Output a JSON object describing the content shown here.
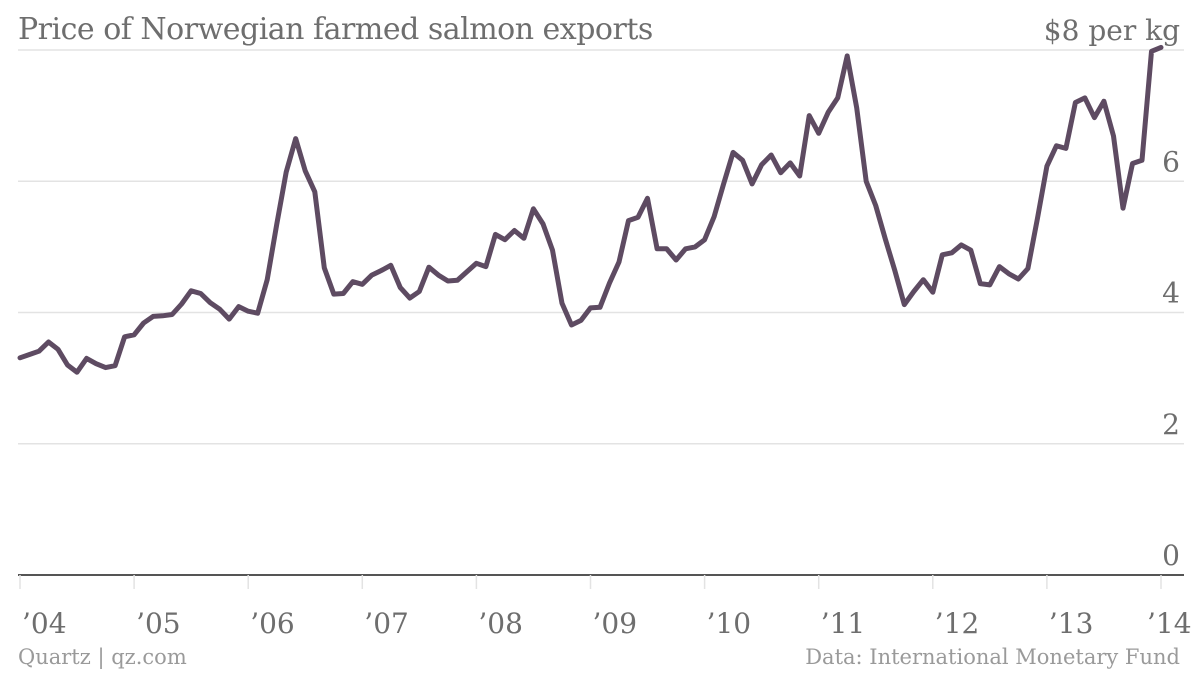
{
  "header": {
    "title": "Price of Norwegian farmed salmon exports"
  },
  "footer": {
    "credit": "Quartz | qz.com",
    "source": "Data: International Monetary Fund"
  },
  "colors": {
    "line": "#5e4b62",
    "grid": "#e3e3e3",
    "axis": "#555555",
    "text": "#6e6e6e"
  },
  "chart_data": {
    "type": "line",
    "title": "Price of Norwegian farmed salmon exports",
    "ylabel": "",
    "xlabel": "",
    "ylim": [
      0,
      8
    ],
    "yticks": [
      0,
      2,
      4,
      6,
      8
    ],
    "ytick_labels": [
      "0",
      "2",
      "4",
      "6",
      "$8 per kg"
    ],
    "x_start": 2004.0,
    "x_step": 0.0833333,
    "xticks": [
      2004,
      2005,
      2006,
      2007,
      2008,
      2009,
      2010,
      2011,
      2012,
      2013,
      2014
    ],
    "xtick_labels": [
      "’04",
      "’05",
      "’06",
      "’07",
      "’08",
      "’09",
      "’10",
      "’11",
      "’12",
      "’13",
      "’14"
    ],
    "grid": true,
    "legend": "none",
    "series": [
      {
        "values": [
          3.31,
          3.36,
          3.41,
          3.55,
          3.44,
          3.2,
          3.09,
          3.3,
          3.22,
          3.16,
          3.19,
          3.63,
          3.66,
          3.84,
          3.94,
          3.95,
          3.97,
          4.13,
          4.33,
          4.29,
          4.15,
          4.05,
          3.9,
          4.09,
          4.02,
          3.99,
          4.5,
          5.34,
          6.14,
          6.65,
          6.16,
          5.84,
          4.68,
          4.28,
          4.29,
          4.47,
          4.43,
          4.57,
          4.64,
          4.72,
          4.38,
          4.22,
          4.32,
          4.69,
          4.57,
          4.48,
          4.49,
          4.62,
          4.75,
          4.7,
          5.19,
          5.11,
          5.25,
          5.13,
          5.58,
          5.35,
          4.95,
          4.14,
          3.81,
          3.88,
          4.07,
          4.08,
          4.45,
          4.77,
          5.4,
          5.45,
          5.74,
          4.97,
          4.97,
          4.8,
          4.97,
          5.0,
          5.11,
          5.46,
          5.96,
          6.44,
          6.32,
          5.96,
          6.25,
          6.4,
          6.13,
          6.28,
          6.08,
          7.0,
          6.73,
          7.05,
          7.27,
          7.91,
          7.12,
          6.0,
          5.63,
          5.12,
          4.64,
          4.12,
          4.32,
          4.5,
          4.31,
          4.88,
          4.91,
          5.03,
          4.95,
          4.44,
          4.42,
          4.7,
          4.59,
          4.51,
          4.67,
          5.43,
          6.23,
          6.54,
          6.5,
          7.2,
          7.27,
          6.97,
          7.22,
          6.69,
          5.59,
          6.27,
          6.32,
          7.98,
          8.04
        ]
      }
    ]
  }
}
